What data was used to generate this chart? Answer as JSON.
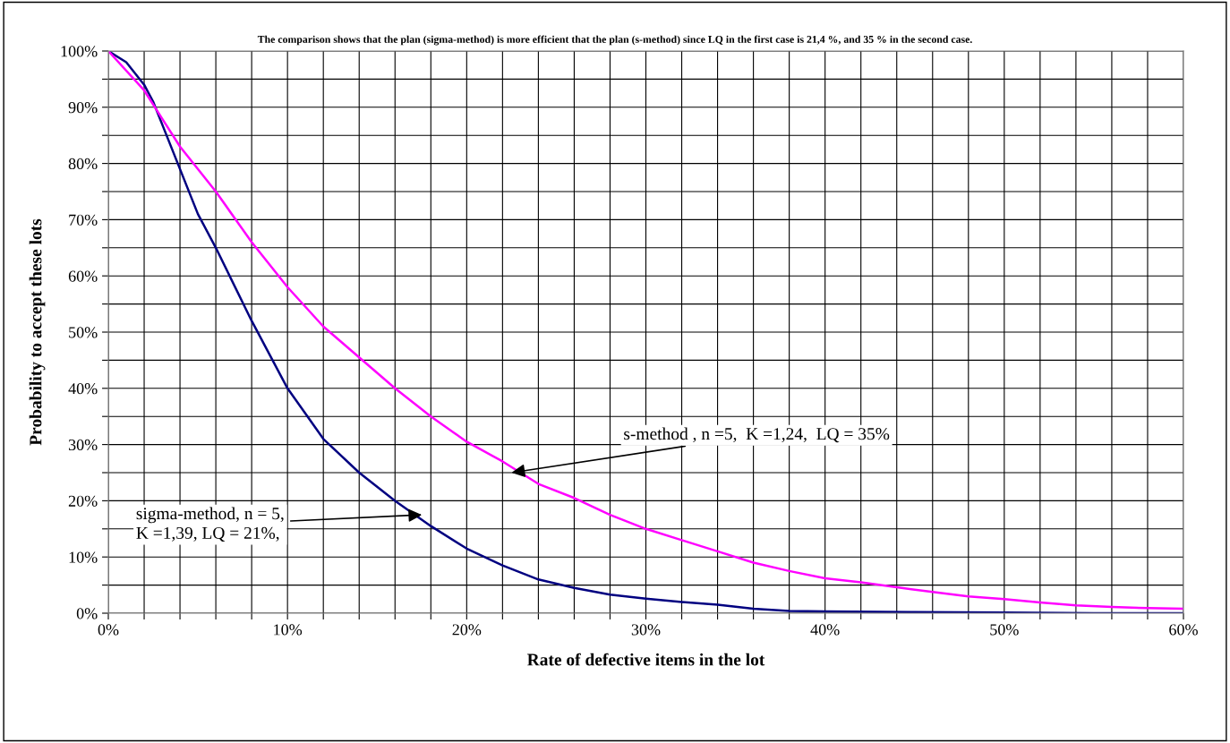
{
  "chart_data": {
    "type": "line",
    "title": "The comparison shows that the plan (sigma-method) is more efficient that the plan (s-method) since LQ in the first case is 21,4 %, and 35 % in the second case.",
    "xlabel": "Rate of defective items in the lot",
    "ylabel": "Probability to accept these lots",
    "series": [
      {
        "color": "#000080",
        "x": [
          0,
          1,
          2,
          2.5,
          3,
          4,
          5,
          6,
          8,
          10,
          12,
          14,
          16,
          18,
          20,
          22,
          24,
          26,
          28,
          30,
          32,
          34,
          36,
          38,
          40,
          45,
          50,
          55,
          60
        ],
        "values": [
          100,
          98,
          94,
          91,
          87,
          79,
          71,
          65,
          52,
          40,
          31,
          25,
          20,
          15.5,
          11.5,
          8.5,
          6,
          4.5,
          3.3,
          2.6,
          2,
          1.5,
          0.8,
          0.4,
          0.3,
          0.2,
          0.1,
          0,
          0
        ]
      },
      {
        "color": "#ff00ff",
        "x": [
          0,
          2,
          3,
          4,
          6,
          8,
          10,
          12,
          14,
          16,
          18,
          20,
          22,
          24,
          26,
          28,
          30,
          32,
          34,
          36,
          38,
          40,
          42,
          44,
          46,
          48,
          50,
          52,
          54,
          56,
          58,
          60
        ],
        "values": [
          100,
          93,
          88,
          83,
          75,
          66,
          58,
          51,
          45.5,
          40,
          35,
          30.5,
          27,
          23,
          20.5,
          17.5,
          15,
          13,
          11,
          9,
          7.5,
          6.2,
          5.5,
          4.6,
          3.8,
          3,
          2.5,
          1.9,
          1.4,
          1.1,
          0.9,
          0.8
        ]
      }
    ],
    "xlim": [
      0,
      60
    ],
    "xticks": [
      {
        "value": 0,
        "label": "0%"
      },
      {
        "value": 2,
        "label": null
      },
      {
        "value": 4,
        "label": null
      },
      {
        "value": 6,
        "label": null
      },
      {
        "value": 8,
        "label": null
      },
      {
        "value": 10,
        "label": "10%"
      },
      {
        "value": 12,
        "label": null
      },
      {
        "value": 14,
        "label": null
      },
      {
        "value": 16,
        "label": null
      },
      {
        "value": 18,
        "label": null
      },
      {
        "value": 20,
        "label": "20%"
      },
      {
        "value": 22,
        "label": null
      },
      {
        "value": 24,
        "label": null
      },
      {
        "value": 26,
        "label": null
      },
      {
        "value": 28,
        "label": null
      },
      {
        "value": 30,
        "label": "30%"
      },
      {
        "value": 32,
        "label": null
      },
      {
        "value": 34,
        "label": null
      },
      {
        "value": 36,
        "label": null
      },
      {
        "value": 38,
        "label": null
      },
      {
        "value": 40,
        "label": "40%"
      },
      {
        "value": 42,
        "label": null
      },
      {
        "value": 44,
        "label": null
      },
      {
        "value": 46,
        "label": null
      },
      {
        "value": 48,
        "label": null
      },
      {
        "value": 50,
        "label": "50%"
      },
      {
        "value": 52,
        "label": null
      },
      {
        "value": 54,
        "label": null
      },
      {
        "value": 56,
        "label": null
      },
      {
        "value": 58,
        "label": null
      },
      {
        "value": 60,
        "label": "60%"
      }
    ],
    "ylim": [
      0,
      100
    ],
    "yticks": [
      {
        "value": 0,
        "label": "0%"
      },
      {
        "value": 5,
        "label": null
      },
      {
        "value": 10,
        "label": "10%"
      },
      {
        "value": 15,
        "label": null
      },
      {
        "value": 20,
        "label": "20%"
      },
      {
        "value": 25,
        "label": null
      },
      {
        "value": 30,
        "label": "30%"
      },
      {
        "value": 35,
        "label": null
      },
      {
        "value": 40,
        "label": "40%"
      },
      {
        "value": 45,
        "label": null
      },
      {
        "value": 50,
        "label": "50%"
      },
      {
        "value": 55,
        "label": null
      },
      {
        "value": 60,
        "label": "60%"
      },
      {
        "value": 65,
        "label": null
      },
      {
        "value": 70,
        "label": "70%"
      },
      {
        "value": 75,
        "label": null
      },
      {
        "value": 80,
        "label": "80%"
      },
      {
        "value": 85,
        "label": null
      },
      {
        "value": 90,
        "label": "90%"
      },
      {
        "value": 95,
        "label": null
      },
      {
        "value": 100,
        "label": "100%"
      }
    ],
    "grid": true,
    "marker": "none",
    "line_style": "solid",
    "annotations": [
      {
        "text": "sigma-method, n = 5,\nK =1,39, LQ = 21%,",
        "x": 17.5,
        "y": 17.5
      },
      {
        "text": "s-method , n =5,  K =1,24,  LQ = 35%",
        "x": 22.5,
        "y": 25
      }
    ]
  }
}
